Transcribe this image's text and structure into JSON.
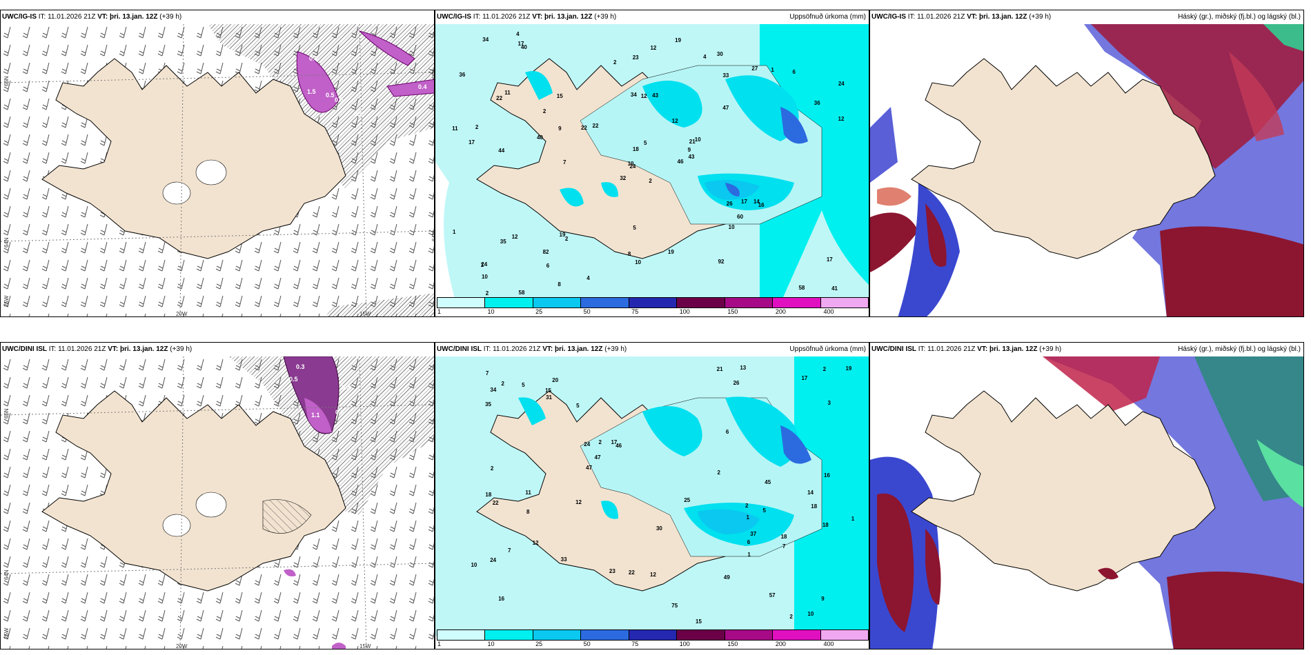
{
  "top": {
    "wind": {
      "model": "UWC/IG-IS",
      "it": "IT: 11.01.2026 21Z",
      "vt": "VT: þri. 13.jan. 12Z",
      "lead": "(+39 h)",
      "labels": {
        "lat66": "66N",
        "lat64": "64N",
        "lon20": "20W",
        "lon15": "15W",
        "lon25": "25W"
      },
      "precip_labels": [
        "0.3",
        "1.5",
        "0.5",
        "0.5",
        "0.5",
        "0.4"
      ]
    },
    "precip": {
      "model": "UWC/IG-IS",
      "it": "IT: 11.01.2026 21Z",
      "vt": "VT: þri. 13.jan. 12Z",
      "lead": "(+39 h)",
      "title": "Uppsöfnuð úrkoma (mm)",
      "values": [
        "2",
        "22",
        "24",
        "24",
        "21",
        "2",
        "30",
        "43",
        "33",
        "46",
        "40",
        "41",
        "44",
        "24",
        "32",
        "47",
        "58",
        "34",
        "12",
        "12",
        "22",
        "10",
        "6",
        "12",
        "10",
        "16",
        "11",
        "23",
        "17",
        "26",
        "12",
        "10",
        "8",
        "18",
        "15",
        "27",
        "19",
        "58",
        "17",
        "14",
        "19",
        "22",
        "40",
        "10",
        "8",
        "11",
        "9",
        "2",
        "10",
        "43",
        "35",
        "36",
        "36",
        "60",
        "92",
        "82",
        "17",
        "34",
        "19",
        "6",
        "12",
        "7",
        "2",
        "2",
        "1",
        "4",
        "4",
        "2",
        "5",
        "1",
        "5",
        "4",
        "17",
        "9",
        "1"
      ]
    },
    "cloud": {
      "model": "UWC/IG-IS",
      "it": "IT: 11.01.2026 21Z",
      "vt": "VT: þri. 13.jan. 12Z",
      "lead": "(+39 h)",
      "title": "Háský (gr.), miðský (fj.bl.) og lágský (bl.)"
    }
  },
  "bottom": {
    "wind": {
      "model": "UWC/DINI ISL",
      "it": "IT: 11.01.2026 21Z",
      "vt": "VT: þri. 13.jan. 12Z",
      "lead": "(+39 h)",
      "labels": {
        "lat66": "66N",
        "lat64": "64N",
        "lon20": "20W",
        "lon15": "15W",
        "lon25": "25W"
      },
      "precip_labels": [
        "0.3",
        "0.5",
        "0.3",
        "1.1",
        "0.3"
      ]
    },
    "precip": {
      "model": "UWC/DINI ISL",
      "it": "IT: 11.01.2026 21Z",
      "vt": "VT: þri. 13.jan. 12Z",
      "lead": "(+39 h)",
      "title": "Uppsöfnuð úrkoma (mm)",
      "values": [
        "1",
        "18",
        "16",
        "20",
        "46",
        "57",
        "24",
        "26",
        "24",
        "15",
        "35",
        "18",
        "34",
        "9",
        "23",
        "16",
        "30",
        "25",
        "17",
        "12",
        "19",
        "17",
        "47",
        "18",
        "21",
        "15",
        "37",
        "22",
        "31",
        "45",
        "75",
        "49",
        "47",
        "12",
        "14",
        "7",
        "6",
        "11",
        "12",
        "7",
        "3",
        "13",
        "10",
        "22",
        "18",
        "33",
        "10",
        "2",
        "2",
        "2",
        "1",
        "2",
        "2",
        "2",
        "1",
        "2",
        "6",
        "7",
        "8",
        "5",
        "5",
        "5"
      ]
    },
    "cloud": {
      "model": "UWC/DINI ISL",
      "it": "IT: 11.01.2026 21Z",
      "vt": "VT: þri. 13.jan. 12Z",
      "lead": "(+39 h)",
      "title": "Háský (gr.), miðský (fj.bl.) og lágský (bl.)"
    }
  },
  "legend": {
    "labels": [
      "1",
      "10",
      "25",
      "50",
      "75",
      "100",
      "150",
      "200",
      "400"
    ],
    "colors": [
      "#cffcfc",
      "#00f0f0",
      "#0ac8ef",
      "#2c6ae0",
      "#2428b0",
      "#6b0048",
      "#a60a86",
      "#e010c0",
      "#f0a8f0"
    ]
  }
}
